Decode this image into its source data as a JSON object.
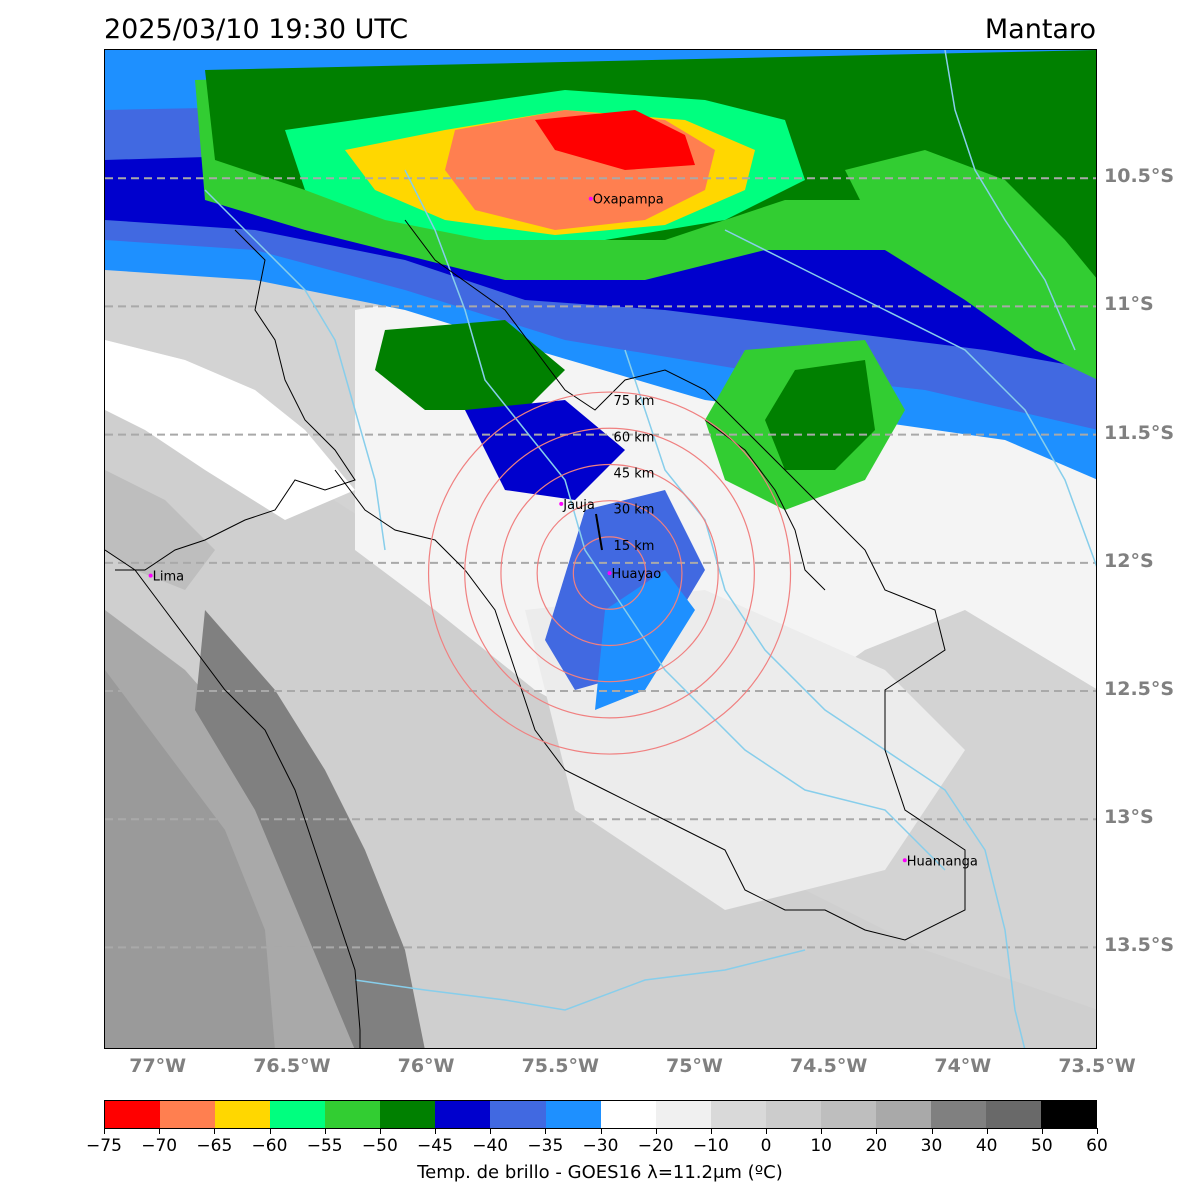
{
  "header": {
    "datetime": "2025/03/10 19:30 UTC",
    "region": "Mantaro"
  },
  "map": {
    "cities": [
      {
        "name": "Oxapampa",
        "lon": -75.39,
        "lat": -10.58
      },
      {
        "name": "Jauja",
        "lon": -75.5,
        "lat": -11.77
      },
      {
        "name": "Lima",
        "lon": -77.03,
        "lat": -12.05
      },
      {
        "name": "Huayao",
        "lon": -75.32,
        "lat": -12.04
      },
      {
        "name": "Huamanga",
        "lon": -74.22,
        "lat": -13.16
      }
    ],
    "range_rings": {
      "center": {
        "lon": -75.32,
        "lat": -12.04
      },
      "labels": [
        "15 km",
        "30 km",
        "45 km",
        "60 km",
        "75 km"
      ],
      "color": "#f08080"
    },
    "lat_labels": [
      "10.5°S",
      "11°S",
      "11.5°S",
      "12°S",
      "12.5°S",
      "13°S",
      "13.5°S"
    ],
    "lat_values": [
      -10.5,
      -11,
      -11.5,
      -12,
      -12.5,
      -13,
      -13.5
    ],
    "lon_labels": [
      "77°W",
      "76.5°W",
      "76°W",
      "75.5°W",
      "75°W",
      "74.5°W",
      "74°W",
      "73.5°W"
    ],
    "lon_values": [
      -77,
      -76.5,
      -76,
      -75.5,
      -75,
      -74.5,
      -74,
      -73.5
    ],
    "extent": {
      "lon_min": -77.2,
      "lon_max": -73.5,
      "lat_min": -13.9,
      "lat_max": -10.0
    },
    "gridline_color": "#a9a9a9",
    "river_color": "#87ceeb"
  },
  "colorbar": {
    "tick_labels": [
      "−75",
      "−70",
      "−65",
      "−60",
      "−55",
      "−50",
      "−45",
      "−40",
      "−35",
      "−30",
      "−20",
      "−10",
      "0",
      "10",
      "20",
      "30",
      "40",
      "50",
      "60"
    ],
    "colors": [
      "#ff0000",
      "#ff7f50",
      "#ffd700",
      "#00ff7f",
      "#32cd32",
      "#008000",
      "#0000cd",
      "#4169e1",
      "#1e90ff",
      "#ffffff",
      "#f0f0f0",
      "#d9d9d9",
      "#cccccc",
      "#bebebe",
      "#a9a9a9",
      "#808080",
      "#696969",
      "#000000"
    ],
    "label": "Temp. de brillo - GOES16 λ=11.2μm (ºC)"
  }
}
